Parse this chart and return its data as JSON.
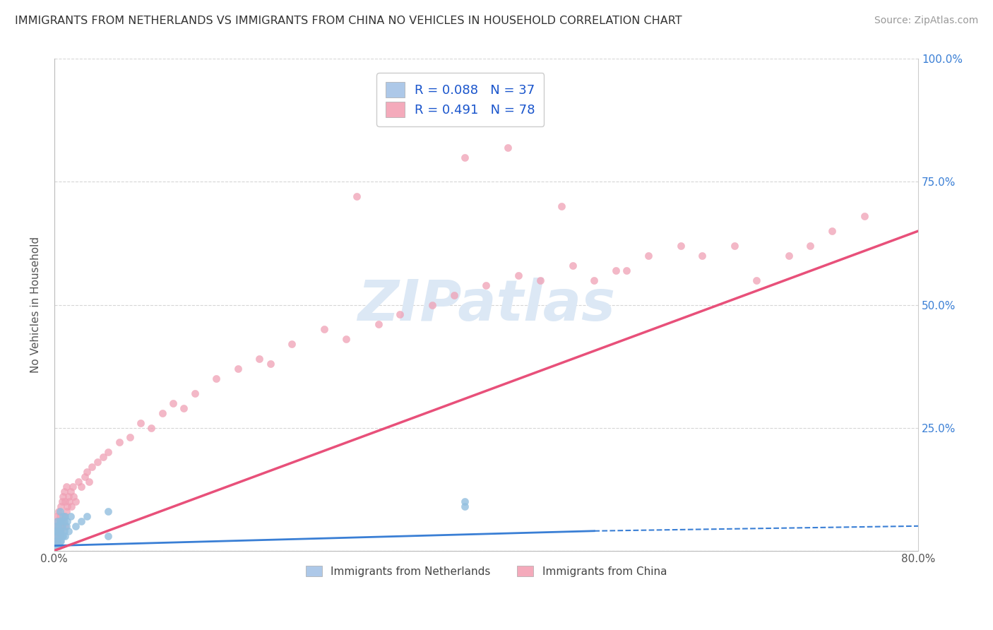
{
  "title": "IMMIGRANTS FROM NETHERLANDS VS IMMIGRANTS FROM CHINA NO VEHICLES IN HOUSEHOLD CORRELATION CHART",
  "source": "Source: ZipAtlas.com",
  "ylabel": "No Vehicles in Household",
  "xlim": [
    0.0,
    0.8
  ],
  "ylim": [
    0.0,
    1.0
  ],
  "legend_label1": "R = 0.088   N = 37",
  "legend_label2": "R = 0.491   N = 78",
  "legend_color1": "#adc8e8",
  "legend_color2": "#f4aabb",
  "color_netherlands": "#92bfdf",
  "color_china": "#f0a0b5",
  "trendline_color_netherlands": "#3a7fd5",
  "trendline_color_china": "#e8507a",
  "watermark_color": "#dce8f5",
  "netherlands_x": [
    0.001,
    0.001,
    0.002,
    0.002,
    0.002,
    0.003,
    0.003,
    0.003,
    0.004,
    0.004,
    0.004,
    0.005,
    0.005,
    0.005,
    0.005,
    0.006,
    0.006,
    0.006,
    0.007,
    0.007,
    0.008,
    0.008,
    0.009,
    0.009,
    0.01,
    0.01,
    0.011,
    0.012,
    0.013,
    0.015,
    0.02,
    0.025,
    0.03,
    0.05,
    0.05,
    0.38,
    0.38
  ],
  "netherlands_y": [
    0.02,
    0.04,
    0.01,
    0.03,
    0.05,
    0.02,
    0.04,
    0.06,
    0.01,
    0.03,
    0.05,
    0.02,
    0.04,
    0.06,
    0.08,
    0.02,
    0.04,
    0.06,
    0.03,
    0.05,
    0.03,
    0.07,
    0.04,
    0.06,
    0.03,
    0.07,
    0.05,
    0.06,
    0.04,
    0.07,
    0.05,
    0.06,
    0.07,
    0.08,
    0.03,
    0.09,
    0.1
  ],
  "china_x": [
    0.001,
    0.001,
    0.002,
    0.002,
    0.003,
    0.003,
    0.004,
    0.004,
    0.005,
    0.005,
    0.006,
    0.006,
    0.007,
    0.007,
    0.008,
    0.008,
    0.009,
    0.009,
    0.01,
    0.01,
    0.011,
    0.011,
    0.012,
    0.013,
    0.014,
    0.015,
    0.016,
    0.017,
    0.018,
    0.02,
    0.022,
    0.025,
    0.028,
    0.03,
    0.032,
    0.035,
    0.04,
    0.045,
    0.05,
    0.06,
    0.07,
    0.08,
    0.09,
    0.1,
    0.11,
    0.12,
    0.13,
    0.15,
    0.17,
    0.19,
    0.2,
    0.22,
    0.25,
    0.27,
    0.3,
    0.32,
    0.35,
    0.37,
    0.4,
    0.43,
    0.45,
    0.48,
    0.5,
    0.52,
    0.55,
    0.58,
    0.6,
    0.63,
    0.65,
    0.68,
    0.7,
    0.72,
    0.75,
    0.42,
    0.47,
    0.53,
    0.38,
    0.28
  ],
  "china_y": [
    0.02,
    0.05,
    0.03,
    0.07,
    0.02,
    0.06,
    0.04,
    0.08,
    0.03,
    0.07,
    0.04,
    0.09,
    0.05,
    0.1,
    0.06,
    0.11,
    0.07,
    0.12,
    0.05,
    0.1,
    0.08,
    0.13,
    0.09,
    0.11,
    0.1,
    0.12,
    0.09,
    0.13,
    0.11,
    0.1,
    0.14,
    0.13,
    0.15,
    0.16,
    0.14,
    0.17,
    0.18,
    0.19,
    0.2,
    0.22,
    0.23,
    0.26,
    0.25,
    0.28,
    0.3,
    0.29,
    0.32,
    0.35,
    0.37,
    0.39,
    0.38,
    0.42,
    0.45,
    0.43,
    0.46,
    0.48,
    0.5,
    0.52,
    0.54,
    0.56,
    0.55,
    0.58,
    0.55,
    0.57,
    0.6,
    0.62,
    0.6,
    0.62,
    0.55,
    0.6,
    0.62,
    0.65,
    0.68,
    0.82,
    0.7,
    0.57,
    0.8,
    0.72
  ],
  "nl_trendline": [
    0.0,
    0.8,
    0.012,
    0.015
  ],
  "cn_trendline_start_y": 0.0,
  "cn_trendline_end_y": 0.65
}
